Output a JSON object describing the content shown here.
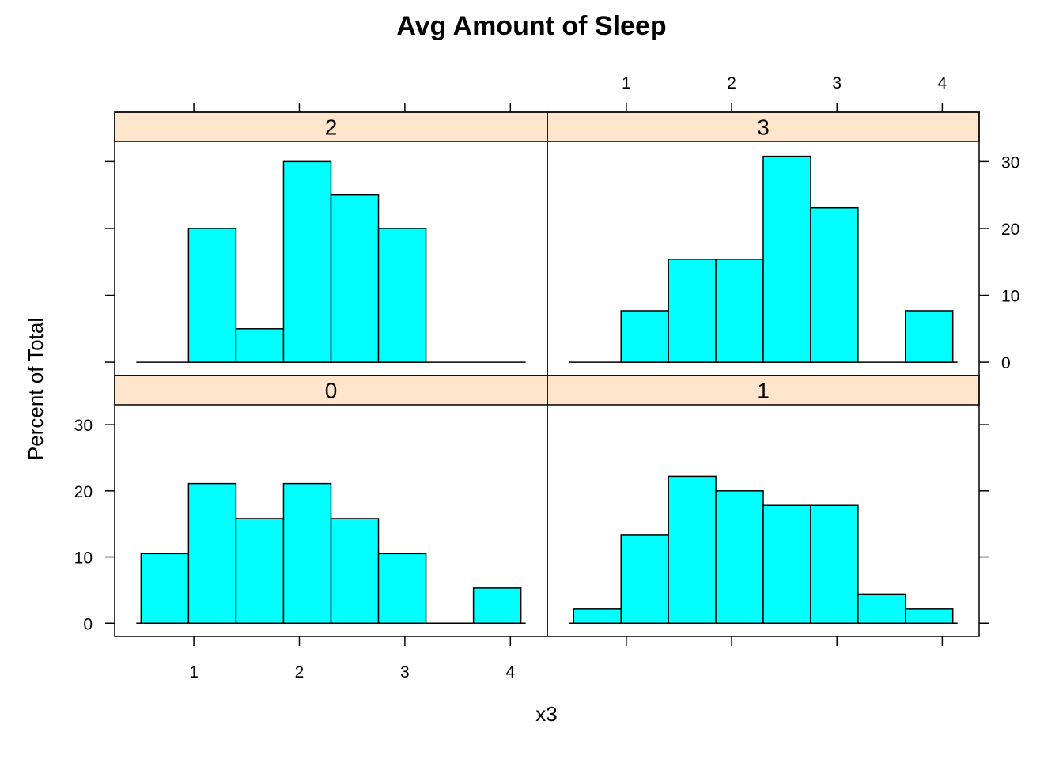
{
  "chart_data": {
    "type": "bar",
    "title": "Avg Amount of Sleep",
    "xlabel": "x3",
    "ylabel": "Percent of Total",
    "xlim": [
      0.25,
      4.35
    ],
    "ylim": [
      -2,
      33
    ],
    "x_ticks": [
      1,
      2,
      3,
      4
    ],
    "y_ticks": [
      0,
      10,
      20,
      30
    ],
    "bin_breaks": [
      0.5,
      0.95,
      1.4,
      1.85,
      2.3,
      2.75,
      3.2,
      3.65,
      4.1
    ],
    "bar_color": "#00ffff",
    "strip_color": "#ffe5cc",
    "panels": [
      {
        "label": "2",
        "position": "top-left",
        "values": [
          0,
          20,
          5,
          30,
          25,
          20,
          0,
          0
        ]
      },
      {
        "label": "3",
        "position": "top-right",
        "values": [
          0,
          7.7,
          15.4,
          15.4,
          30.8,
          23.1,
          0,
          7.7
        ]
      },
      {
        "label": "0",
        "position": "bottom-left",
        "values": [
          10.5,
          21.1,
          15.8,
          21.1,
          15.8,
          10.5,
          0,
          5.3
        ]
      },
      {
        "label": "1",
        "position": "bottom-right",
        "values": [
          2.2,
          13.3,
          22.2,
          20,
          17.8,
          17.8,
          4.4,
          2.2
        ]
      }
    ]
  }
}
